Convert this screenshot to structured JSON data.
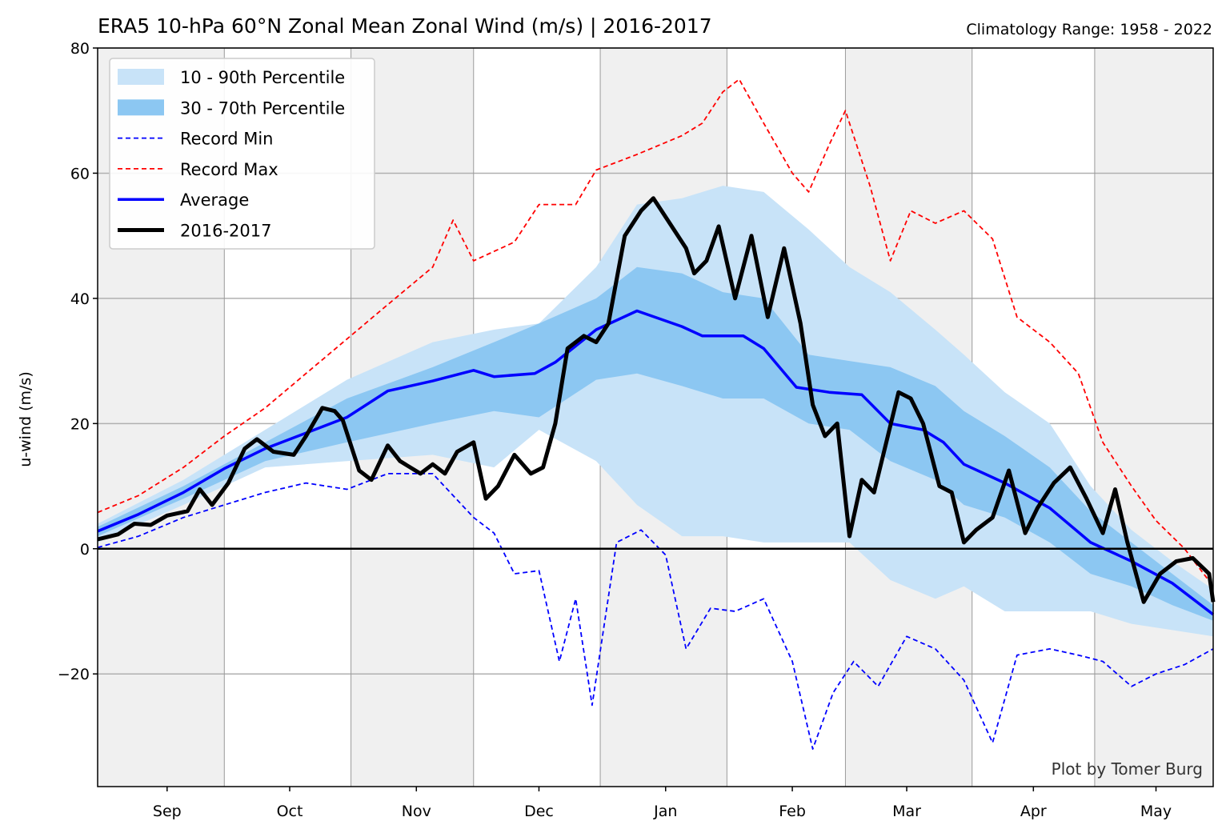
{
  "chart_data": {
    "type": "area",
    "title": "ERA5 10-hPa 60°N Zonal Mean Zonal Wind (m/s) | 2016-2017",
    "subtitle": "Climatology Range: 1958 - 2022",
    "ylabel": "u-wind (m/s)",
    "xlabel": "",
    "credit": "Plot by Tomer Burg",
    "xlim": [
      "2016-08-15",
      "2017-05-15"
    ],
    "ylim": [
      -38,
      80
    ],
    "y_ticks": [
      -20,
      0,
      20,
      40,
      60,
      80
    ],
    "y_tick_labels": [
      "−20",
      "0",
      "20",
      "40",
      "60",
      "80"
    ],
    "x_ticks": [
      {
        "label": "Sep",
        "date": "2016-09-01"
      },
      {
        "label": "Oct",
        "date": "2016-10-01"
      },
      {
        "label": "Nov",
        "date": "2016-11-01"
      },
      {
        "label": "Dec",
        "date": "2016-12-01"
      },
      {
        "label": "Jan",
        "date": "2017-01-01"
      },
      {
        "label": "Feb",
        "date": "2017-02-01"
      },
      {
        "label": "Mar",
        "date": "2017-03-01"
      },
      {
        "label": "Apr",
        "date": "2017-04-01"
      },
      {
        "label": "May",
        "date": "2017-05-01"
      }
    ],
    "vertical_gridlines": [
      "2016-09-15",
      "2016-10-16",
      "2016-11-15",
      "2016-12-16",
      "2017-01-16",
      "2017-02-14",
      "2017-03-17",
      "2017-04-16"
    ],
    "shaded_bands": [
      [
        "2016-08-15",
        "2016-09-15"
      ],
      [
        "2016-10-16",
        "2016-11-15"
      ],
      [
        "2016-12-16",
        "2017-01-16"
      ],
      [
        "2017-02-14",
        "2017-03-17"
      ],
      [
        "2017-04-16",
        "2017-05-15"
      ]
    ],
    "grid": true,
    "legend_position": "top-left",
    "colors": {
      "p10_90": "#c8e3f8",
      "p30_70": "#8cc7f2",
      "record_min": "#0000ff",
      "record_max": "#ff0000",
      "average": "#0000ff",
      "current": "#000000",
      "shade": "#f0f0f0"
    },
    "legend": [
      {
        "label": "10 - 90th Percentile",
        "style": "patch",
        "color": "#c8e3f8"
      },
      {
        "label": "30 - 70th Percentile",
        "style": "patch",
        "color": "#8cc7f2"
      },
      {
        "label": "Record Min",
        "style": "dashed",
        "color": "#0000ff"
      },
      {
        "label": "Record Max",
        "style": "dashed",
        "color": "#ff0000"
      },
      {
        "label": "Average",
        "style": "solid",
        "color": "#0000ff"
      },
      {
        "label": "2016-2017",
        "style": "thick",
        "color": "#000000"
      }
    ],
    "series": [
      {
        "name": "Average",
        "points": [
          [
            "2016-08-15",
            2.8
          ],
          [
            "2016-08-25",
            5.5
          ],
          [
            "2016-09-05",
            9.0
          ],
          [
            "2016-09-15",
            12.8
          ],
          [
            "2016-09-25",
            16.0
          ],
          [
            "2016-10-05",
            18.5
          ],
          [
            "2016-10-15",
            21.0
          ],
          [
            "2016-10-25",
            25.2
          ],
          [
            "2016-11-05",
            26.8
          ],
          [
            "2016-11-15",
            28.5
          ],
          [
            "2016-11-20",
            27.5
          ],
          [
            "2016-11-30",
            28.0
          ],
          [
            "2016-12-05",
            29.8
          ],
          [
            "2016-12-15",
            35.0
          ],
          [
            "2016-12-25",
            38.0
          ],
          [
            "2017-01-05",
            35.5
          ],
          [
            "2017-01-10",
            34.0
          ],
          [
            "2017-01-20",
            34.0
          ],
          [
            "2017-01-25",
            32.0
          ],
          [
            "2017-02-02",
            25.8
          ],
          [
            "2017-02-10",
            25.0
          ],
          [
            "2017-02-18",
            24.6
          ],
          [
            "2017-02-25",
            20.0
          ],
          [
            "2017-03-05",
            19.0
          ],
          [
            "2017-03-10",
            17.0
          ],
          [
            "2017-03-15",
            13.5
          ],
          [
            "2017-03-25",
            10.5
          ],
          [
            "2017-04-05",
            6.5
          ],
          [
            "2017-04-15",
            1.0
          ],
          [
            "2017-04-25",
            -2.0
          ],
          [
            "2017-05-05",
            -5.5
          ],
          [
            "2017-05-15",
            -10.5
          ]
        ]
      },
      {
        "name": "2016-2017",
        "points": [
          [
            "2016-08-15",
            1.5
          ],
          [
            "2016-08-20",
            2.3
          ],
          [
            "2016-08-24",
            4.0
          ],
          [
            "2016-08-28",
            3.8
          ],
          [
            "2016-09-01",
            5.3
          ],
          [
            "2016-09-06",
            6.0
          ],
          [
            "2016-09-09",
            9.5
          ],
          [
            "2016-09-12",
            7.0
          ],
          [
            "2016-09-16",
            10.5
          ],
          [
            "2016-09-20",
            16.0
          ],
          [
            "2016-09-23",
            17.5
          ],
          [
            "2016-09-27",
            15.5
          ],
          [
            "2016-10-02",
            15.0
          ],
          [
            "2016-10-05",
            18.0
          ],
          [
            "2016-10-09",
            22.5
          ],
          [
            "2016-10-12",
            22.0
          ],
          [
            "2016-10-14",
            20.5
          ],
          [
            "2016-10-18",
            12.5
          ],
          [
            "2016-10-21",
            11.0
          ],
          [
            "2016-10-25",
            16.5
          ],
          [
            "2016-10-28",
            14.0
          ],
          [
            "2016-11-02",
            12.0
          ],
          [
            "2016-11-05",
            13.5
          ],
          [
            "2016-11-08",
            12.0
          ],
          [
            "2016-11-11",
            15.5
          ],
          [
            "2016-11-15",
            17.0
          ],
          [
            "2016-11-18",
            8.0
          ],
          [
            "2016-11-21",
            10.0
          ],
          [
            "2016-11-25",
            15.0
          ],
          [
            "2016-11-29",
            12.0
          ],
          [
            "2016-12-02",
            13.0
          ],
          [
            "2016-12-05",
            20.0
          ],
          [
            "2016-12-08",
            32.0
          ],
          [
            "2016-12-12",
            34.0
          ],
          [
            "2016-12-15",
            33.0
          ],
          [
            "2016-12-18",
            36.0
          ],
          [
            "2016-12-22",
            50.0
          ],
          [
            "2016-12-26",
            54.0
          ],
          [
            "2016-12-29",
            56.0
          ],
          [
            "2017-01-02",
            52.0
          ],
          [
            "2017-01-06",
            48.0
          ],
          [
            "2017-01-08",
            44.0
          ],
          [
            "2017-01-11",
            46.0
          ],
          [
            "2017-01-14",
            51.5
          ],
          [
            "2017-01-18",
            40.0
          ],
          [
            "2017-01-22",
            50.0
          ],
          [
            "2017-01-26",
            37.0
          ],
          [
            "2017-01-30",
            48.0
          ],
          [
            "2017-02-03",
            36.0
          ],
          [
            "2017-02-06",
            23.0
          ],
          [
            "2017-02-09",
            18.0
          ],
          [
            "2017-02-12",
            20.0
          ],
          [
            "2017-02-15",
            2.0
          ],
          [
            "2017-02-18",
            11.0
          ],
          [
            "2017-02-21",
            9.0
          ],
          [
            "2017-02-24",
            17.0
          ],
          [
            "2017-02-27",
            25.0
          ],
          [
            "2017-03-02",
            24.0
          ],
          [
            "2017-03-05",
            20.0
          ],
          [
            "2017-03-09",
            10.0
          ],
          [
            "2017-03-12",
            9.0
          ],
          [
            "2017-03-15",
            1.0
          ],
          [
            "2017-03-18",
            3.0
          ],
          [
            "2017-03-22",
            5.0
          ],
          [
            "2017-03-26",
            12.5
          ],
          [
            "2017-03-30",
            2.5
          ],
          [
            "2017-04-02",
            6.5
          ],
          [
            "2017-04-06",
            10.5
          ],
          [
            "2017-04-10",
            13.0
          ],
          [
            "2017-04-14",
            8.0
          ],
          [
            "2017-04-18",
            2.5
          ],
          [
            "2017-04-21",
            9.5
          ],
          [
            "2017-04-24",
            1.0
          ],
          [
            "2017-04-28",
            -8.5
          ],
          [
            "2017-05-02",
            -4.0
          ],
          [
            "2017-05-06",
            -2.0
          ],
          [
            "2017-05-10",
            -1.5
          ],
          [
            "2017-05-14",
            -4.0
          ],
          [
            "2017-05-15",
            -8.5
          ]
        ]
      },
      {
        "name": "Record Max",
        "points": [
          [
            "2016-08-15",
            5.8
          ],
          [
            "2016-08-25",
            8.5
          ],
          [
            "2016-09-05",
            13.0
          ],
          [
            "2016-09-15",
            18.0
          ],
          [
            "2016-09-25",
            22.5
          ],
          [
            "2016-10-05",
            28.0
          ],
          [
            "2016-10-15",
            33.5
          ],
          [
            "2016-10-25",
            39.0
          ],
          [
            "2016-11-05",
            45.0
          ],
          [
            "2016-11-10",
            52.5
          ],
          [
            "2016-11-15",
            46.0
          ],
          [
            "2016-11-25",
            49.0
          ],
          [
            "2016-12-01",
            55.0
          ],
          [
            "2016-12-10",
            55.0
          ],
          [
            "2016-12-15",
            60.5
          ],
          [
            "2016-12-25",
            63.0
          ],
          [
            "2017-01-05",
            66.0
          ],
          [
            "2017-01-10",
            68.0
          ],
          [
            "2017-01-15",
            73.0
          ],
          [
            "2017-01-19",
            75.0
          ],
          [
            "2017-01-25",
            68.0
          ],
          [
            "2017-02-01",
            60.0
          ],
          [
            "2017-02-05",
            57.0
          ],
          [
            "2017-02-10",
            64.5
          ],
          [
            "2017-02-14",
            70.0
          ],
          [
            "2017-02-20",
            58.0
          ],
          [
            "2017-02-25",
            46.0
          ],
          [
            "2017-03-02",
            54.0
          ],
          [
            "2017-03-08",
            52.0
          ],
          [
            "2017-03-15",
            54.0
          ],
          [
            "2017-03-22",
            49.5
          ],
          [
            "2017-03-28",
            37.0
          ],
          [
            "2017-04-05",
            33.0
          ],
          [
            "2017-04-12",
            28.0
          ],
          [
            "2017-04-18",
            17.0
          ],
          [
            "2017-04-25",
            10.0
          ],
          [
            "2017-05-01",
            4.5
          ],
          [
            "2017-05-08",
            0.0
          ],
          [
            "2017-05-15",
            -6.0
          ]
        ]
      },
      {
        "name": "Record Min",
        "points": [
          [
            "2016-08-15",
            0.2
          ],
          [
            "2016-08-25",
            2.0
          ],
          [
            "2016-09-05",
            5.0
          ],
          [
            "2016-09-15",
            7.0
          ],
          [
            "2016-09-25",
            9.0
          ],
          [
            "2016-10-05",
            10.5
          ],
          [
            "2016-10-15",
            9.5
          ],
          [
            "2016-10-25",
            12.0
          ],
          [
            "2016-11-05",
            12.0
          ],
          [
            "2016-11-15",
            5.0
          ],
          [
            "2016-11-20",
            2.5
          ],
          [
            "2016-11-25",
            -4.0
          ],
          [
            "2016-12-01",
            -3.5
          ],
          [
            "2016-12-06",
            -18.0
          ],
          [
            "2016-12-10",
            -8.0
          ],
          [
            "2016-12-14",
            -25.0
          ],
          [
            "2016-12-20",
            1.0
          ],
          [
            "2016-12-26",
            3.0
          ],
          [
            "2017-01-01",
            -1.0
          ],
          [
            "2017-01-06",
            -16.0
          ],
          [
            "2017-01-12",
            -9.5
          ],
          [
            "2017-01-18",
            -10.0
          ],
          [
            "2017-01-25",
            -8.0
          ],
          [
            "2017-02-01",
            -18.0
          ],
          [
            "2017-02-06",
            -32.0
          ],
          [
            "2017-02-11",
            -23.0
          ],
          [
            "2017-02-16",
            -18.0
          ],
          [
            "2017-02-22",
            -22.0
          ],
          [
            "2017-03-01",
            -14.0
          ],
          [
            "2017-03-08",
            -16.0
          ],
          [
            "2017-03-15",
            -21.0
          ],
          [
            "2017-03-22",
            -31.0
          ],
          [
            "2017-03-28",
            -17.0
          ],
          [
            "2017-04-05",
            -16.0
          ],
          [
            "2017-04-12",
            -17.0
          ],
          [
            "2017-04-18",
            -18.0
          ],
          [
            "2017-04-25",
            -22.0
          ],
          [
            "2017-05-01",
            -20.0
          ],
          [
            "2017-05-08",
            -18.5
          ],
          [
            "2017-05-15",
            -16.0
          ]
        ]
      },
      {
        "name": "10 - 90th Percentile",
        "x": [
          "2016-08-15",
          "2016-09-05",
          "2016-09-25",
          "2016-10-15",
          "2016-11-05",
          "2016-11-20",
          "2016-12-01",
          "2016-12-15",
          "2016-12-25",
          "2017-01-05",
          "2017-01-15",
          "2017-01-25",
          "2017-02-05",
          "2017-02-15",
          "2017-02-25",
          "2017-03-08",
          "2017-03-15",
          "2017-03-25",
          "2017-04-05",
          "2017-04-15",
          "2017-04-25",
          "2017-05-05",
          "2017-05-15"
        ],
        "lower": [
          1.0,
          7.0,
          13.0,
          14.0,
          15.0,
          13.0,
          19.0,
          14.0,
          7.0,
          2.0,
          2.0,
          1.0,
          1.0,
          1.0,
          -5.0,
          -8.0,
          -6.0,
          -10.0,
          -10.0,
          -10.0,
          -12.0,
          -13.0,
          -14.0
        ],
        "upper": [
          4.0,
          11.0,
          19.0,
          27.0,
          33.0,
          35.0,
          36.0,
          45.0,
          55.0,
          56.0,
          58.0,
          57.0,
          51.0,
          45.0,
          41.0,
          35.0,
          31.0,
          25.0,
          20.0,
          10.0,
          3.0,
          -2.0,
          -6.5
        ]
      },
      {
        "name": "30 - 70th Percentile",
        "x": [
          "2016-08-15",
          "2016-09-05",
          "2016-09-25",
          "2016-10-15",
          "2016-11-05",
          "2016-11-20",
          "2016-12-01",
          "2016-12-15",
          "2016-12-25",
          "2017-01-05",
          "2017-01-15",
          "2017-01-25",
          "2017-02-05",
          "2017-02-15",
          "2017-02-25",
          "2017-03-08",
          "2017-03-15",
          "2017-03-25",
          "2017-04-05",
          "2017-04-15",
          "2017-04-25",
          "2017-05-05",
          "2017-05-15"
        ],
        "lower": [
          2.0,
          8.0,
          14.0,
          17.0,
          20.0,
          22.0,
          21.0,
          27.0,
          28.0,
          26.0,
          24.0,
          24.0,
          20.0,
          19.0,
          14.0,
          11.0,
          7.0,
          5.0,
          1.0,
          -4.0,
          -6.0,
          -9.0,
          -11.5
        ],
        "upper": [
          3.5,
          10.0,
          17.0,
          24.0,
          29.0,
          33.0,
          36.0,
          40.0,
          45.0,
          44.0,
          41.0,
          40.0,
          31.0,
          30.0,
          29.0,
          26.0,
          22.0,
          18.0,
          13.0,
          6.0,
          1.0,
          -4.0,
          -9.0
        ]
      }
    ]
  }
}
